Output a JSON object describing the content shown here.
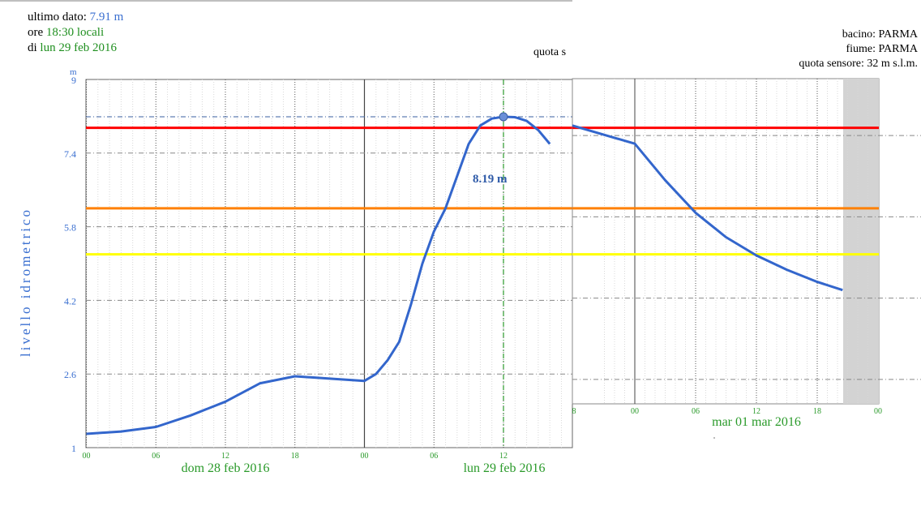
{
  "info": {
    "last_label": "ultimo dato:",
    "last_value": "7.91 m",
    "time_prefix": "ore",
    "time_value": "18:30 locali",
    "date_prefix": "di",
    "date_value": "lun 29 feb 2016",
    "basin": "bacino: PARMA",
    "river": "fiume: PARMA",
    "sensor_elev": "quota sensore: 32 m s.l.m.",
    "quota_cut": "quota s"
  },
  "chart_data": {
    "type": "line",
    "ylabel": "livello idrometrico",
    "yunit": "m",
    "ylim": [
      1,
      9
    ],
    "yticks": [
      "1",
      "2.6",
      "4.2",
      "5.8",
      "7.4",
      "9"
    ],
    "ytick_values": [
      1,
      2.6,
      4.2,
      5.8,
      7.4,
      9
    ],
    "xlabel_panel1": [
      "dom 28 feb 2016",
      "lun 29 feb 2016"
    ],
    "xticks_panel1": [
      "00",
      "06",
      "12",
      "18",
      "00",
      "06",
      "12"
    ],
    "xlabel_panel2": "mar 01 mar 2016",
    "xticks_panel2": [
      "8",
      "00",
      "06",
      "12",
      "18",
      "00"
    ],
    "peak_label": "8.19 m",
    "peak_value": 8.19,
    "thresholds": [
      {
        "value": 7.95,
        "color": "#ff0000"
      },
      {
        "value": 6.2,
        "color": "#ff8000"
      },
      {
        "value": 5.2,
        "color": "#ffff00"
      }
    ],
    "series_color": "#3366cc",
    "series_panel1": {
      "x_hours": [
        0,
        3,
        6,
        9,
        12,
        15,
        18,
        21,
        24,
        25,
        26,
        27,
        28,
        29,
        30,
        31,
        32,
        33,
        34,
        35,
        36,
        37,
        38,
        39,
        40
      ],
      "y": [
        1.3,
        1.35,
        1.45,
        1.7,
        2.0,
        2.4,
        2.55,
        2.5,
        2.45,
        2.6,
        2.9,
        3.3,
        4.1,
        5.0,
        5.7,
        6.2,
        6.9,
        7.6,
        8.0,
        8.15,
        8.19,
        8.18,
        8.1,
        7.9,
        7.6
      ]
    },
    "series_panel2": {
      "x_hours": [
        0,
        3,
        6,
        9,
        12,
        15,
        18,
        20.5
      ],
      "y": [
        7.2,
        6.3,
        5.5,
        4.9,
        4.45,
        4.1,
        3.8,
        3.6
      ]
    }
  }
}
